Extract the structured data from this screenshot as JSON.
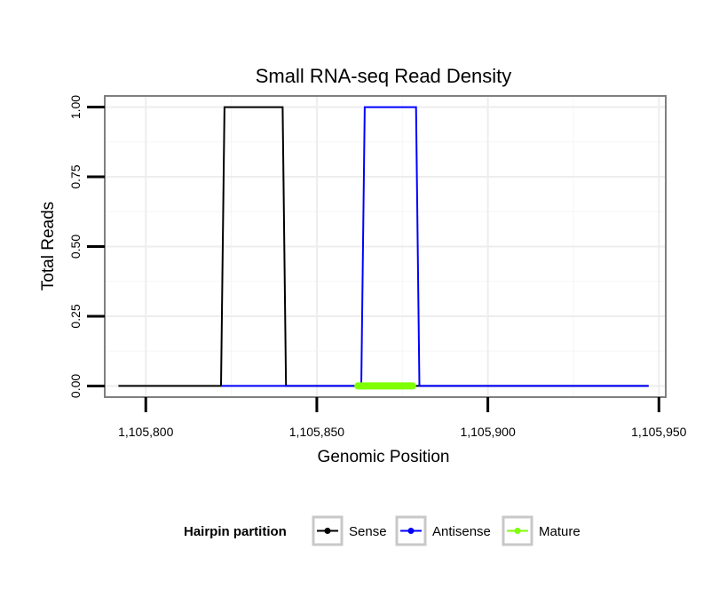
{
  "chart_data": {
    "type": "line",
    "title": "Small RNA-seq Read Density",
    "xlabel": "Genomic Position",
    "ylabel": "Total Reads",
    "xlim": [
      1105788,
      1105952
    ],
    "ylim": [
      -0.04,
      1.04
    ],
    "x_ticks": [
      1105800,
      1105850,
      1105900,
      1105950
    ],
    "x_tick_labels": [
      "1,105,800",
      "1,105,850",
      "1,105,900",
      "1,105,950"
    ],
    "y_ticks": [
      0,
      0.25,
      0.5,
      0.75,
      1.0
    ],
    "y_tick_labels": [
      "0.00",
      "0.25",
      "0.50",
      "0.75",
      "1.00"
    ],
    "grid": true,
    "legend_position": "bottom",
    "legend_title": "Hairpin partition",
    "series": [
      {
        "name": "Sense",
        "color": "#000000",
        "x": [
          1105792,
          1105822,
          1105823,
          1105840,
          1105841,
          1105947
        ],
        "y": [
          0,
          0,
          1,
          1,
          0,
          0
        ]
      },
      {
        "name": "Antisense",
        "color": "#0000ff",
        "x": [
          1105822,
          1105841,
          1105863,
          1105864,
          1105879,
          1105880,
          1105947
        ],
        "y": [
          0,
          0,
          0,
          1,
          1,
          0,
          0
        ]
      },
      {
        "name": "Mature",
        "color": "#7fff00",
        "x": [
          1105862,
          1105878
        ],
        "y": [
          0,
          0
        ]
      }
    ]
  }
}
